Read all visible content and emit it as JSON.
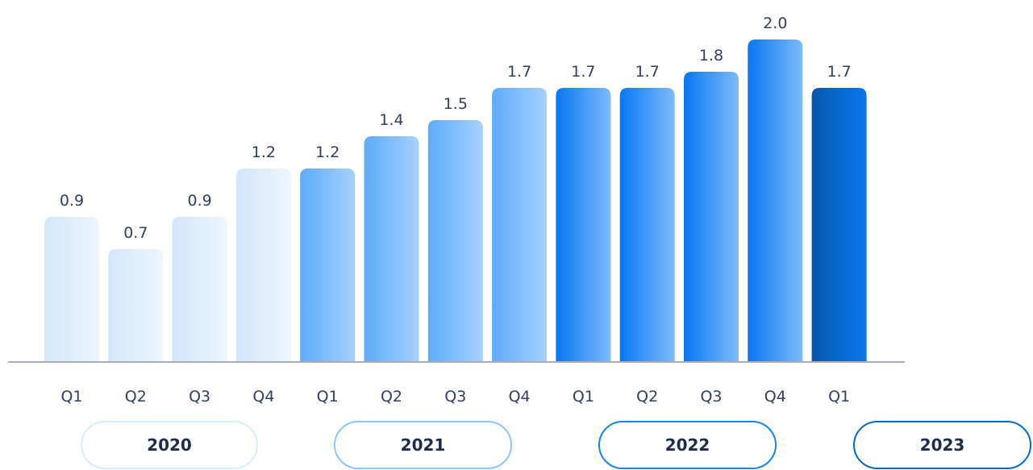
{
  "chart_data": {
    "type": "bar",
    "title": "",
    "xlabel": "",
    "ylabel": "",
    "ylim": [
      0,
      2.1
    ],
    "categories": [
      "Q1",
      "Q2",
      "Q3",
      "Q4",
      "Q1",
      "Q2",
      "Q3",
      "Q4",
      "Q1",
      "Q2",
      "Q3",
      "Q4",
      "Q1"
    ],
    "years": [
      "2020",
      "2020",
      "2020",
      "2020",
      "2021",
      "2021",
      "2021",
      "2021",
      "2022",
      "2022",
      "2022",
      "2022",
      "2023"
    ],
    "values": [
      0.9,
      0.7,
      0.9,
      1.2,
      1.2,
      1.4,
      1.5,
      1.7,
      1.7,
      1.7,
      1.8,
      2.0,
      1.7
    ],
    "value_labels": [
      "0.9",
      "0.7",
      "0.9",
      "1.2",
      "1.2",
      "1.4",
      "1.5",
      "1.7",
      "1.7",
      "1.7",
      "1.8",
      "2.0",
      "1.7"
    ],
    "grid": false,
    "legend": "none"
  },
  "year_groups": [
    {
      "label": "2020",
      "color": "#d9ecfb"
    },
    {
      "label": "2021",
      "color": "#8cc4fb"
    },
    {
      "label": "2022",
      "color": "#1584f0"
    },
    {
      "label": "2023",
      "color": "#0a67c9"
    }
  ],
  "year_bar_colors": {
    "2020": [
      "#d3e6fa",
      "#eef6fe"
    ],
    "2021": [
      "#5eabfa",
      "#a6d1fd"
    ],
    "2022": [
      "#0877f3",
      "#7dbbfb"
    ],
    "2023": [
      "#0757ae",
      "#0a78ee"
    ]
  },
  "axis_color": "#a6adb7"
}
